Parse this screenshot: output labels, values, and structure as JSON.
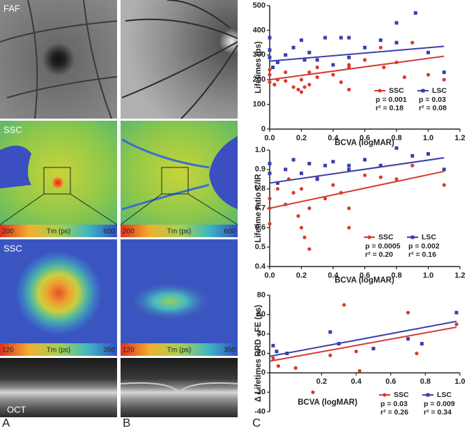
{
  "panels": {
    "faf": "FAF",
    "ssc_map": "SSC",
    "ssc_zoom": "SSC",
    "oct": "OCT",
    "colorbar_map": {
      "min": 200,
      "title": "Tm (ps)",
      "max": 600
    },
    "colorbar_zoom": {
      "min": 120,
      "title": "Tm (ps)",
      "max": 350
    },
    "letters": [
      "A",
      "B",
      "C"
    ]
  },
  "chart_data": [
    {
      "type": "scatter",
      "y_label": "Lifetimes (ps)",
      "x_label": "BCVA (logMAR)",
      "xlim": [
        0,
        1.2
      ],
      "xticks": [
        {
          "value": 0,
          "label": "0.0"
        },
        0.2,
        0.4,
        0.6,
        0.8,
        {
          "value": 1,
          "label": "1.0"
        },
        1.2
      ],
      "ylim": [
        0,
        500
      ],
      "yticks": [
        0,
        100,
        200,
        300,
        400,
        500
      ],
      "series": [
        {
          "name": "SSC",
          "color": "#d83a2e",
          "marker": "circle",
          "p": "p = 0.001",
          "r2": "r² = 0.18",
          "x": [
            0,
            0,
            0,
            0.03,
            0.05,
            0.1,
            0.1,
            0.15,
            0.18,
            0.2,
            0.2,
            0.22,
            0.25,
            0.25,
            0.3,
            0.3,
            0.4,
            0.45,
            0.5,
            0.5,
            0.5,
            0.6,
            0.7,
            0.72,
            0.8,
            0.85,
            0.9,
            1.0,
            1.1
          ],
          "values": [
            190,
            220,
            240,
            180,
            200,
            230,
            195,
            170,
            160,
            150,
            200,
            170,
            180,
            230,
            210,
            250,
            220,
            190,
            160,
            250,
            260,
            280,
            330,
            250,
            270,
            210,
            350,
            220,
            200
          ],
          "trend": {
            "x": [
              0,
              1.1
            ],
            "y": [
              200,
              295
            ]
          }
        },
        {
          "name": "LSC",
          "color": "#3b3fa8",
          "marker": "square",
          "p": "p = 0.03",
          "r2": "r² = 0.08",
          "x": [
            0,
            0,
            0,
            0.02,
            0.05,
            0.1,
            0.15,
            0.2,
            0.22,
            0.25,
            0.3,
            0.35,
            0.4,
            0.45,
            0.5,
            0.5,
            0.6,
            0.7,
            0.8,
            0.8,
            0.92,
            1.0,
            1.1
          ],
          "values": [
            370,
            320,
            290,
            250,
            270,
            300,
            330,
            360,
            280,
            310,
            280,
            370,
            260,
            370,
            290,
            370,
            330,
            360,
            430,
            350,
            470,
            310,
            230
          ],
          "trend": {
            "x": [
              0,
              1.1
            ],
            "y": [
              275,
              335
            ]
          }
        }
      ]
    },
    {
      "type": "scatter",
      "y_label": "Lifetime ratio C/IR",
      "x_label": "BCVA (logMAR)",
      "xlim": [
        0,
        1.2
      ],
      "xticks": [
        {
          "value": 0,
          "label": "0.0"
        },
        0.2,
        0.4,
        0.6,
        0.8,
        {
          "value": 1,
          "label": "1.0"
        },
        1.2
      ],
      "ylim": [
        0.4,
        1.0
      ],
      "yticks": [
        0.4,
        0.5,
        0.6,
        0.7,
        0.8,
        0.9,
        {
          "value": 1,
          "label": "1.0"
        }
      ],
      "series": [
        {
          "name": "SSC",
          "color": "#d83a2e",
          "marker": "circle",
          "p": "p = 0.0005",
          "r2": "r² = 0.20",
          "x": [
            0,
            0,
            0,
            0.05,
            0.1,
            0.12,
            0.15,
            0.18,
            0.2,
            0.2,
            0.22,
            0.25,
            0.25,
            0.3,
            0.35,
            0.4,
            0.45,
            0.5,
            0.5,
            0.6,
            0.7,
            0.8,
            0.9,
            1.1
          ],
          "values": [
            0.62,
            0.7,
            0.75,
            0.8,
            0.72,
            0.85,
            0.78,
            0.66,
            0.6,
            0.8,
            0.55,
            0.49,
            0.7,
            0.86,
            0.75,
            0.82,
            0.78,
            0.6,
            0.7,
            0.87,
            0.86,
            0.85,
            0.92,
            0.82
          ],
          "trend": {
            "x": [
              0,
              1.1
            ],
            "y": [
              0.7,
              0.89
            ]
          }
        },
        {
          "name": "LSC",
          "color": "#3b3fa8",
          "marker": "square",
          "p": "p = 0.002",
          "r2": "r² = 0.16",
          "x": [
            0,
            0,
            0.05,
            0.1,
            0.15,
            0.2,
            0.25,
            0.3,
            0.35,
            0.4,
            0.5,
            0.5,
            0.6,
            0.7,
            0.8,
            0.9,
            1.0,
            1.1
          ],
          "values": [
            0.93,
            0.88,
            0.83,
            0.9,
            0.95,
            0.88,
            0.93,
            0.85,
            0.92,
            0.94,
            0.92,
            0.9,
            0.95,
            0.92,
            1.01,
            0.97,
            0.98,
            0.9
          ],
          "trend": {
            "x": [
              0,
              1.1
            ],
            "y": [
              0.83,
              0.96
            ]
          }
        }
      ]
    },
    {
      "type": "scatter",
      "y_label": "Δ Lifetimes RRD - FE (ps)",
      "x_label": "BCVA (logMAR)",
      "xlim": [
        -0.1,
        1.0
      ],
      "xticks": [
        0.2,
        0.4,
        0.6,
        0.8,
        {
          "value": 1,
          "label": "1.0"
        }
      ],
      "ylim": [
        -40,
        80
      ],
      "yticks": [
        -40,
        -20,
        0,
        20,
        40,
        60,
        80
      ],
      "series": [
        {
          "name": "SSC",
          "color": "#d83a2e",
          "marker": "circle",
          "p": "p = 0.03",
          "r2": "r² = 0.26",
          "x": [
            -0.08,
            -0.05,
            0.05,
            0.15,
            0.25,
            0.33,
            0.4,
            0.42,
            0.7,
            0.75,
            0.98
          ],
          "values": [
            15,
            7,
            5,
            -20,
            18,
            70,
            22,
            2,
            62,
            20,
            50
          ],
          "trend": {
            "x": [
              -0.1,
              0.98
            ],
            "y": [
              12,
              47
            ]
          }
        },
        {
          "name": "LSC",
          "color": "#3b3fa8",
          "marker": "square",
          "p": "p = 0.009",
          "r2": "r² = 0.34",
          "x": [
            -0.08,
            -0.06,
            0.0,
            0.25,
            0.3,
            0.5,
            0.7,
            0.78,
            0.98
          ],
          "values": [
            28,
            22,
            20,
            42,
            30,
            25,
            35,
            30,
            62
          ],
          "trend": {
            "x": [
              -0.1,
              0.98
            ],
            "y": [
              17,
              53
            ]
          }
        }
      ]
    }
  ]
}
